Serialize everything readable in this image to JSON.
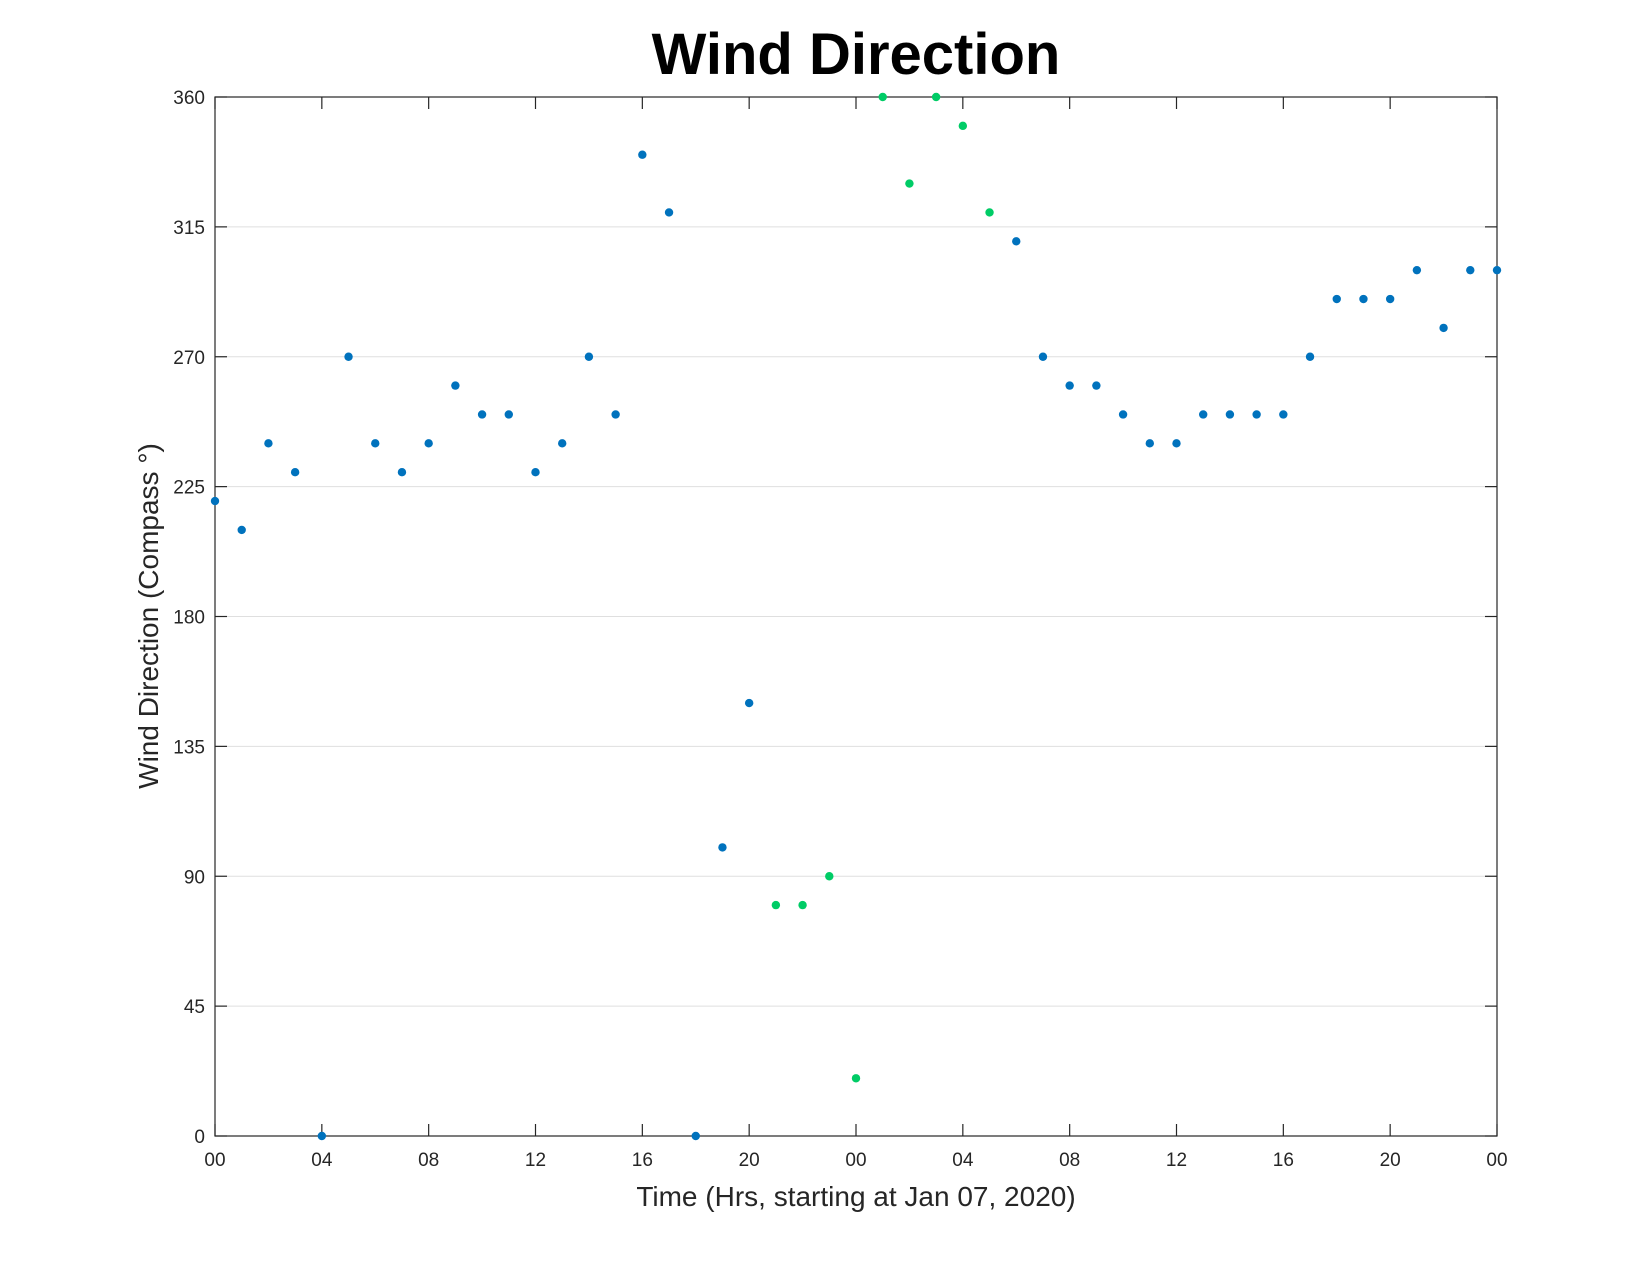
{
  "chart_data": {
    "type": "scatter",
    "title": "Wind Direction",
    "xlabel": "Time (Hrs, starting at Jan 07, 2020)",
    "ylabel": "Wind Direction (Compass °)",
    "xlim": [
      0,
      48
    ],
    "ylim": [
      0,
      360
    ],
    "x_tick_values": [
      0,
      4,
      8,
      12,
      16,
      20,
      24,
      28,
      32,
      36,
      40,
      44,
      48
    ],
    "x_tick_labels": [
      "00",
      "04",
      "08",
      "12",
      "16",
      "20",
      "00",
      "04",
      "08",
      "12",
      "16",
      "20",
      "00"
    ],
    "y_ticks": [
      0,
      45,
      90,
      135,
      180,
      225,
      270,
      315,
      360
    ],
    "grid": true,
    "legend": "none",
    "series": [
      {
        "color": "#0072bd",
        "x": [
          0,
          1,
          2,
          3,
          4,
          5,
          6,
          7,
          8,
          9,
          10,
          11,
          12,
          13,
          14,
          15,
          16,
          17,
          18,
          19,
          20,
          30,
          31,
          32,
          33,
          34,
          35,
          36,
          37,
          38,
          39,
          40,
          41,
          42,
          43,
          44,
          45,
          46,
          47,
          48
        ],
        "y": [
          220,
          210,
          240,
          230,
          0,
          270,
          240,
          230,
          240,
          260,
          250,
          250,
          230,
          240,
          270,
          250,
          340,
          320,
          0,
          100,
          150,
          310,
          270,
          260,
          260,
          250,
          240,
          240,
          250,
          250,
          250,
          250,
          270,
          290,
          290,
          290,
          300,
          280,
          300,
          300
        ]
      },
      {
        "color": "#00cc66",
        "x": [
          21,
          22,
          23,
          24,
          25,
          26,
          27,
          28,
          29
        ],
        "y": [
          80,
          80,
          90,
          20,
          360,
          330,
          360,
          350,
          320
        ]
      }
    ]
  }
}
